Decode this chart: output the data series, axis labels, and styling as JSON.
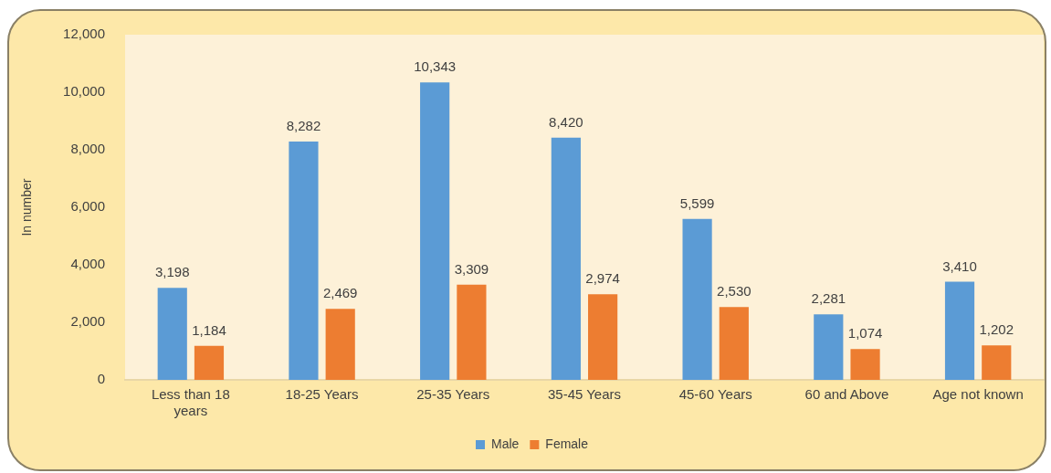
{
  "chart_data": {
    "type": "bar",
    "ylabel": "In number",
    "categories": [
      "Less than 18 years",
      "18-25 Years",
      "25-35 Years",
      "35-45 Years",
      "45-60 Years",
      "60 and Above",
      "Age not known"
    ],
    "series": [
      {
        "name": "Male",
        "color": "#5b9bd5",
        "values": [
          3198,
          8282,
          10343,
          8420,
          5599,
          2281,
          3410
        ],
        "value_labels": [
          "3,198",
          "8,282",
          "10,343",
          "8,420",
          "5,599",
          "2,281",
          "3,410"
        ]
      },
      {
        "name": "Female",
        "color": "#ed7d31",
        "values": [
          1184,
          2469,
          3309,
          2974,
          2530,
          1074,
          1202
        ],
        "value_labels": [
          "1,184",
          "2,469",
          "3,309",
          "2,974",
          "2,530",
          "1,074",
          "1,202"
        ]
      }
    ],
    "ylim": [
      0,
      12000
    ],
    "yticks": [
      0,
      {
        "value": 2000,
        "label": "2,000"
      },
      {
        "value": 4000,
        "label": "4,000"
      },
      {
        "value": 6000,
        "label": "6,000"
      },
      {
        "value": 8000,
        "label": "8,000"
      },
      {
        "value": 10000,
        "label": "10,000"
      },
      {
        "value": 12000,
        "label": "12,000"
      }
    ],
    "grid": false,
    "legend": "bottom"
  }
}
